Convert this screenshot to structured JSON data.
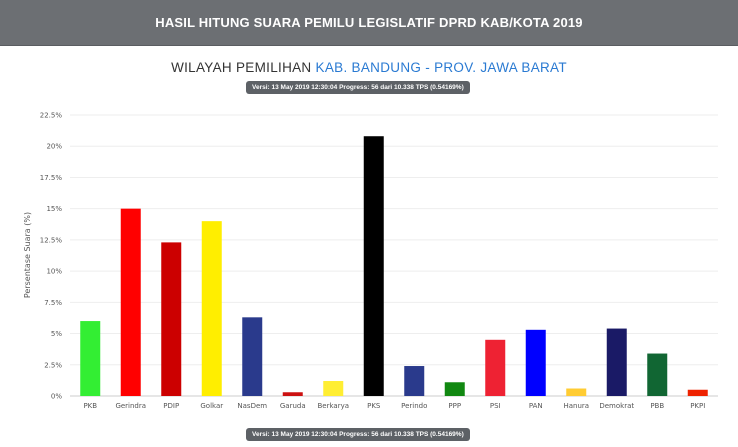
{
  "header": {
    "title": "HASIL HITUNG SUARA PEMILU LEGISLATIF DPRD KAB/KOTA 2019"
  },
  "region": {
    "label": "WILAYAH PEMILIHAN",
    "place": "KAB. BANDUNG - PROV. JAWA BARAT"
  },
  "version_text": "Versi: 13 May 2019 12:30:04 Progress: 56 dari 10.338 TPS (0.54169%)",
  "chart_data": {
    "type": "bar",
    "title": "",
    "xlabel": "",
    "ylabel": "Persentase Suara (%)",
    "ylim": [
      0,
      22.5
    ],
    "yticks": [
      0,
      2.5,
      5,
      7.5,
      10,
      12.5,
      15,
      17.5,
      20,
      22.5
    ],
    "ytick_labels": [
      "0%",
      "2.5%",
      "5%",
      "7.5%",
      "10%",
      "12.5%",
      "15%",
      "17.5%",
      "20%",
      "22.5%"
    ],
    "grid": true,
    "categories": [
      "PKB",
      "Gerindra",
      "PDIP",
      "Golkar",
      "NasDem",
      "Garuda",
      "Berkarya",
      "PKS",
      "Perindo",
      "PPP",
      "PSI",
      "PAN",
      "Hanura",
      "Demokrat",
      "PBB",
      "PKPI"
    ],
    "values": [
      6.0,
      15.0,
      12.3,
      14.0,
      6.3,
      0.3,
      1.2,
      20.8,
      2.4,
      1.1,
      4.5,
      5.3,
      0.6,
      5.4,
      3.4,
      0.5
    ],
    "colors": [
      "#33ee33",
      "#ff0000",
      "#cc0000",
      "#ffee00",
      "#2a3a8c",
      "#cc1111",
      "#ffee33",
      "#000000",
      "#2a3a8c",
      "#118811",
      "#ee2233",
      "#0000ff",
      "#ffcc33",
      "#1a1a66",
      "#116633",
      "#ee2200"
    ]
  }
}
